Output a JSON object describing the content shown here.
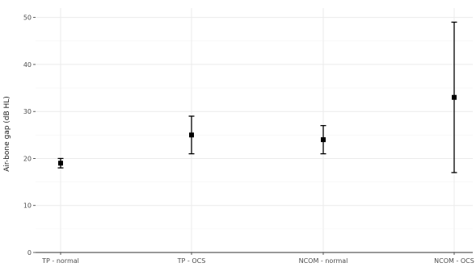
{
  "chart_data": {
    "type": "scatter",
    "subtype": "point-with-error-bars",
    "title": "",
    "xlabel": "",
    "ylabel": "Air-bone gap (dB HL)",
    "categories": [
      "TP - normal",
      "TP - OCS",
      "NCOM - normal",
      "NCOM - OCS"
    ],
    "values": [
      19,
      25,
      24,
      33
    ],
    "error_low": [
      18,
      21,
      21,
      17
    ],
    "error_high": [
      20,
      29,
      27,
      49
    ],
    "ylim": [
      0,
      52
    ],
    "yticks": [
      0,
      10,
      20,
      30,
      40,
      50
    ],
    "grid": true,
    "legend": "none",
    "colors": {
      "point": "#000000",
      "error_bar": "#000000",
      "grid": "#ebebeb",
      "axis_line": "#333333"
    }
  }
}
